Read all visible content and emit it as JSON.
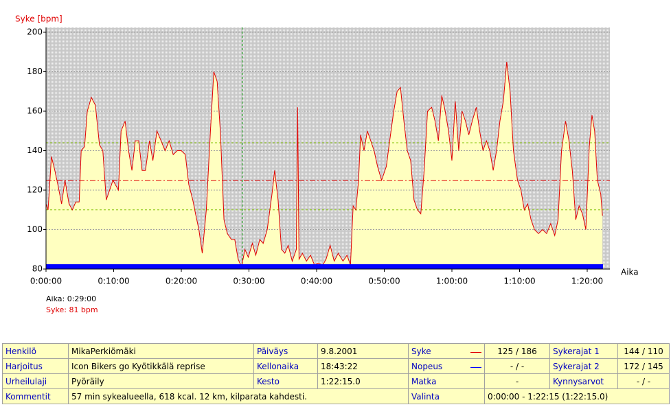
{
  "chart_data": {
    "type": "area",
    "ylabel": "Syke [bpm]",
    "xlabel": "Aika",
    "xlim": [
      0,
      83.35
    ],
    "ylim": [
      80,
      200
    ],
    "xticks": [
      {
        "value": 0,
        "label": "0:00:00"
      },
      {
        "value": 10,
        "label": "0:10:00"
      },
      {
        "value": 20,
        "label": "0:20:00"
      },
      {
        "value": 30,
        "label": "0:30:00"
      },
      {
        "value": 40,
        "label": "0:40:00"
      },
      {
        "value": 50,
        "label": "0:50:00"
      },
      {
        "value": 60,
        "label": "1:00:00"
      },
      {
        "value": 70,
        "label": "1:10:00"
      },
      {
        "value": 80,
        "label": "1:20:00"
      }
    ],
    "yticks": [
      80,
      100,
      120,
      140,
      160,
      180,
      200
    ],
    "grid": true,
    "reference_lines": [
      {
        "value": 144,
        "color": "#80c000",
        "style": "dashed"
      },
      {
        "value": 110,
        "color": "#80c000",
        "style": "dashed"
      },
      {
        "value": 125,
        "color": "#e00000",
        "style": "dashdot"
      }
    ],
    "cursor": {
      "x": 29,
      "time_label": "Aika: 0:29:00",
      "value_label": "Syke: 81 bpm",
      "value": 81
    },
    "x": [
      0,
      0.3,
      0.8,
      1.3,
      1.8,
      2.3,
      2.8,
      3.4,
      3.9,
      4.4,
      4.9,
      5.2,
      5.7,
      6.1,
      6.7,
      7.3,
      7.9,
      8.4,
      8.9,
      9.4,
      9.9,
      10.7,
      11.1,
      11.7,
      12.2,
      12.7,
      13.2,
      13.7,
      14.2,
      14.7,
      15.3,
      15.8,
      16.4,
      17.0,
      17.6,
      18.2,
      18.8,
      19.4,
      20.0,
      20.6,
      21.1,
      21.7,
      22.1,
      22.6,
      23.1,
      23.7,
      24.3,
      24.8,
      25.3,
      25.8,
      26.3,
      26.8,
      27.4,
      27.9,
      28.4,
      28.9,
      29.4,
      29.9,
      30.5,
      31.0,
      31.6,
      32.1,
      32.7,
      33.4,
      33.8,
      34.3,
      34.8,
      35.3,
      35.8,
      36.4,
      37.0,
      37.2,
      37.4,
      37.9,
      38.5,
      39.1,
      39.7,
      40.2,
      40.9,
      41.4,
      42.0,
      42.6,
      43.2,
      43.9,
      44.5,
      45.0,
      45.4,
      45.8,
      46.2,
      46.5,
      47.0,
      47.5,
      48.0,
      48.5,
      49.0,
      49.6,
      50.3,
      50.8,
      51.4,
      51.9,
      52.4,
      52.9,
      53.4,
      53.9,
      54.4,
      54.9,
      55.4,
      55.9,
      56.4,
      57.0,
      57.5,
      58.0,
      58.5,
      59.0,
      59.5,
      60.0,
      60.5,
      61.0,
      61.5,
      62.0,
      62.5,
      63.0,
      63.6,
      64.1,
      64.6,
      65.1,
      65.6,
      66.1,
      66.6,
      67.1,
      67.6,
      68.1,
      68.6,
      69.1,
      69.7,
      70.2,
      70.7,
      71.2,
      71.7,
      72.2,
      72.8,
      73.4,
      74.0,
      74.6,
      75.2,
      75.7,
      76.2,
      76.8,
      77.3,
      77.8,
      78.3,
      78.8,
      79.3,
      79.8,
      80.3,
      80.7,
      81.1,
      81.5,
      82.0,
      82.25
    ],
    "series": [
      {
        "name": "Syke",
        "color": "#e00000",
        "fill_color": "#ffffc0",
        "values": [
          113,
          110,
          137,
          130,
          122,
          113,
          125,
          113,
          110,
          114,
          114,
          140,
          142,
          160,
          167,
          163,
          143,
          140,
          115,
          120,
          125,
          120,
          150,
          155,
          140,
          130,
          145,
          145,
          130,
          130,
          145,
          135,
          150,
          145,
          140,
          145,
          138,
          140,
          140,
          138,
          123,
          115,
          108,
          100,
          88,
          110,
          150,
          180,
          175,
          148,
          105,
          98,
          95,
          95,
          85,
          81,
          90,
          86,
          93,
          87,
          95,
          93,
          100,
          118,
          130,
          115,
          90,
          88,
          92,
          84,
          90,
          162,
          85,
          88,
          84,
          87,
          82,
          83,
          82,
          85,
          92,
          84,
          88,
          84,
          87,
          82,
          112,
          110,
          125,
          148,
          140,
          150,
          145,
          140,
          132,
          125,
          132,
          145,
          160,
          170,
          172,
          155,
          140,
          135,
          115,
          110,
          108,
          130,
          160,
          162,
          155,
          145,
          168,
          160,
          150,
          135,
          165,
          140,
          160,
          155,
          148,
          155,
          162,
          150,
          140,
          145,
          140,
          130,
          140,
          155,
          165,
          185,
          170,
          140,
          125,
          120,
          110,
          113,
          105,
          100,
          98,
          100,
          98,
          103,
          97,
          105,
          140,
          155,
          145,
          130,
          105,
          112,
          108,
          100,
          142,
          158,
          150,
          125,
          118,
          107
        ]
      }
    ]
  },
  "info_table": {
    "rows": [
      [
        "Henkilö",
        "MikaPerkiömäki",
        "Päiväys",
        "9.8.2001",
        "Syke",
        "125 / 186",
        "Sykerajat 1",
        "144 / 110"
      ],
      [
        "Harjoitus",
        "Icon Bikers go Kyötikkälä reprise",
        "Kellonaika",
        "18:43:22",
        "Nopeus",
        "- / -",
        "Sykerajat 2",
        "172 / 145"
      ],
      [
        "Urheilulaji",
        "Pyöräily",
        "Kesto",
        "1:22:15.0",
        "Matka",
        "-",
        "Kynnysarvot",
        "- / -"
      ],
      [
        "Kommentit",
        "57 min sykealueella, 618 kcal. 12 km, kilparata kahdesti.",
        "Valinta",
        "0:00:00 - 1:22:15 (1:22:15.0)"
      ]
    ]
  }
}
